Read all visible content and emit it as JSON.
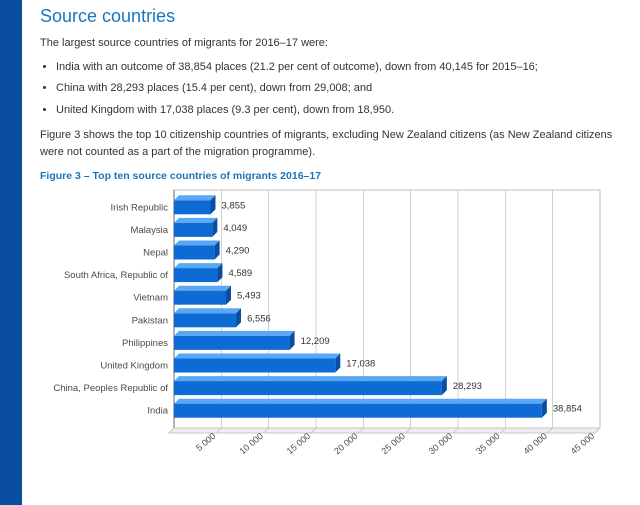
{
  "header": {
    "title": "Source countries"
  },
  "intro": "The largest source countries of migrants for 2016–17 were:",
  "bullets": [
    "India with an outcome of 38,854 places (21.2 per cent of outcome), down from 40,145 for 2015–16;",
    "China with 28,293 places (15.4 per cent), down from 29,008; and",
    "United Kingdom with 17,038 places (9.3 per cent), down from 18,950."
  ],
  "fig_desc": "Figure 3 shows the top 10 citizenship countries of migrants, excluding New Zealand citizens (as New Zealand citizens were not counted as a part of the migration programme).",
  "fig_title": "Figure 3 – Top ten source countries of migrants 2016–17",
  "chart": {
    "type": "bar-horizontal",
    "background_color": "#ffffff",
    "plot_border_color": "#bdbdbd",
    "grid_color": "#bdbdbd",
    "axis_color": "#666666",
    "label_fontsize": 9.5,
    "bar_top_color": "#58a8f5",
    "bar_front_color": "#0e6bd6",
    "bar_side_color": "#0a4ea1",
    "bar_depth": 5,
    "bar_thickness": 14,
    "xlim": [
      0,
      45000
    ],
    "xtick_step": 5000,
    "xtick_labels": [
      "5 000",
      "10 000",
      "15 000",
      "20 000",
      "25 000",
      "30 000",
      "35 000",
      "40 000",
      "45 000"
    ],
    "data": [
      {
        "label": "Irish Republic",
        "value": 3855,
        "value_label": "3,855"
      },
      {
        "label": "Malaysia",
        "value": 4049,
        "value_label": "4,049"
      },
      {
        "label": "Nepal",
        "value": 4290,
        "value_label": "4,290"
      },
      {
        "label": "South Africa, Republic of",
        "value": 4589,
        "value_label": "4,589"
      },
      {
        "label": "Vietnam",
        "value": 5493,
        "value_label": "5,493"
      },
      {
        "label": "Pakistan",
        "value": 6556,
        "value_label": "6,556"
      },
      {
        "label": "Philippines",
        "value": 12209,
        "value_label": "12,209"
      },
      {
        "label": "United Kingdom",
        "value": 17038,
        "value_label": "17,038"
      },
      {
        "label": "China, Peoples Republic of",
        "value": 28293,
        "value_label": "28,293"
      },
      {
        "label": "India",
        "value": 38854,
        "value_label": "38,854"
      }
    ]
  }
}
